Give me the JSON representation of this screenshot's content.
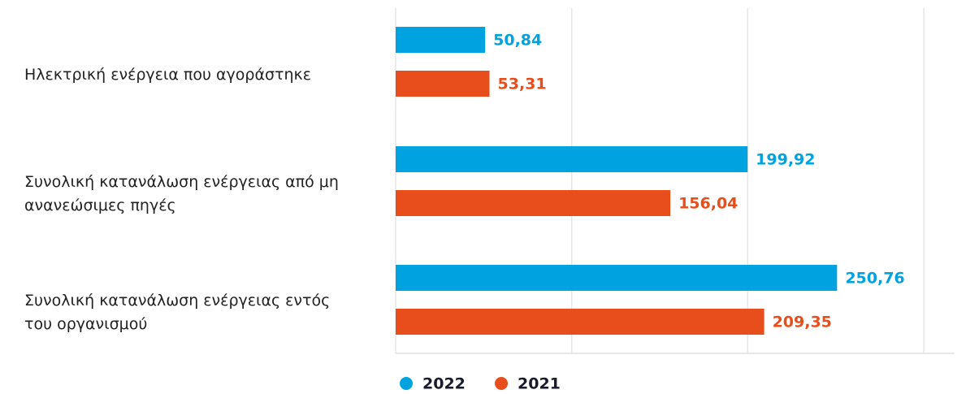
{
  "chart_data": {
    "type": "bar",
    "orientation": "horizontal",
    "categories": [
      "Ηλεκτρική ενέργεια που αγοράστηκε",
      "Συνολική κατανάλωση ενέργειας από μη ανανεώσιμες πηγές",
      "Συνολική κατανάλωση ενέργειας εντός του οργανισμού"
    ],
    "series": [
      {
        "name": "2022",
        "color": "#00a3e0",
        "values": [
          50.84,
          199.92,
          250.76
        ],
        "value_labels": [
          "50,84",
          "199,92",
          "250,76"
        ]
      },
      {
        "name": "2021",
        "color": "#e84e1b",
        "values": [
          53.31,
          156.04,
          209.35
        ],
        "value_labels": [
          "53,31",
          "156,04",
          "209,35"
        ]
      }
    ],
    "xlim": [
      0,
      300
    ],
    "xticks": [
      0,
      100,
      200,
      300
    ],
    "grid": true
  }
}
